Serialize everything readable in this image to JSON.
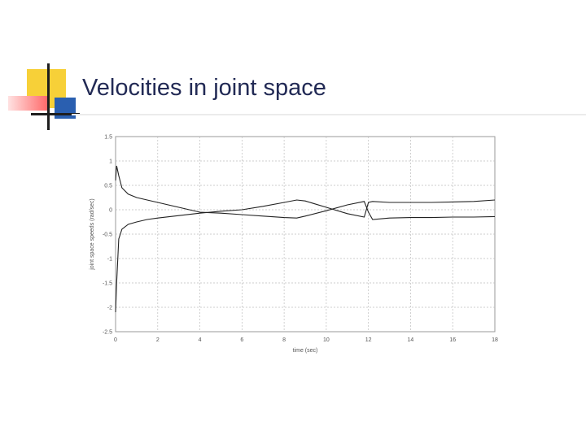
{
  "slide": {
    "title": "Velocities in joint space"
  },
  "chart_data": {
    "type": "line",
    "title": "",
    "xlabel": "time (sec)",
    "ylabel": "joint space speeds (rad/sec)",
    "xlim": [
      0,
      18
    ],
    "ylim": [
      -2.5,
      1.5
    ],
    "grid": true,
    "x_ticks": [
      "0",
      "2",
      "4",
      "6",
      "8",
      "10",
      "12",
      "14",
      "16",
      "18"
    ],
    "y_ticks": [
      "1.5",
      "1",
      "0.5",
      "0",
      "-0.5",
      "-1",
      "-1.5",
      "-2",
      "-2.5"
    ],
    "series": [
      {
        "x": [
          0,
          0.05,
          0.15,
          0.3,
          0.6,
          1,
          1.5,
          2,
          3,
          4,
          5,
          6,
          7,
          8,
          8.6,
          9,
          10,
          11,
          11.8,
          12,
          12.2,
          13,
          14,
          15,
          16,
          17,
          18
        ],
        "values": [
          0.6,
          0.9,
          0.7,
          0.45,
          0.32,
          0.25,
          0.2,
          0.15,
          0.05,
          -0.05,
          -0.07,
          -0.1,
          -0.13,
          -0.16,
          -0.17,
          -0.13,
          -0.02,
          0.1,
          0.17,
          -0.05,
          -0.2,
          -0.17,
          -0.16,
          -0.16,
          -0.15,
          -0.15,
          -0.14
        ]
      },
      {
        "x": [
          0,
          0.05,
          0.15,
          0.3,
          0.6,
          1,
          1.5,
          2,
          3,
          4,
          5,
          6,
          7,
          8,
          8.6,
          9,
          10,
          11,
          11.8,
          12,
          12.2,
          13,
          14,
          15,
          16,
          17,
          18
        ],
        "values": [
          -2.1,
          -1.5,
          -0.6,
          -0.4,
          -0.3,
          -0.25,
          -0.2,
          -0.17,
          -0.12,
          -0.07,
          -0.03,
          0,
          0.07,
          0.15,
          0.2,
          0.18,
          0.05,
          -0.08,
          -0.15,
          0.15,
          0.17,
          0.15,
          0.15,
          0.15,
          0.16,
          0.17,
          0.2
        ]
      }
    ]
  }
}
